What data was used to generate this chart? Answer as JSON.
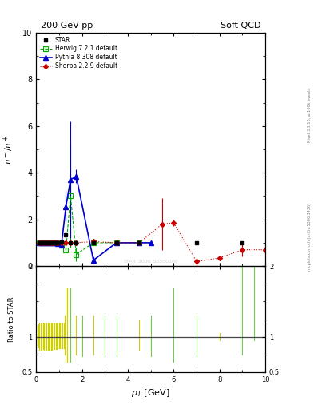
{
  "title_left": "200 GeV pp",
  "title_right": "Soft QCD",
  "ylabel_main": "pi$^-$ / pi$^+$",
  "ylabel_ratio": "Ratio to STAR",
  "xlabel": "$p_T$ [GeV]",
  "right_label_top": "Rivet 3.1.10, ≥ 100k events",
  "right_label_bottom": "mcplots.cern.ch [arXiv:1306.3436]",
  "watermark": "STAR_2006_S6500200",
  "ylim_main": [
    0,
    10
  ],
  "ylim_ratio": [
    0.5,
    2.0
  ],
  "xlim": [
    0,
    10
  ],
  "star_x": [
    0.15,
    0.25,
    0.35,
    0.45,
    0.55,
    0.65,
    0.75,
    0.85,
    0.95,
    1.1,
    1.3,
    1.5,
    1.75,
    2.5,
    3.5,
    4.5,
    7.0,
    9.0
  ],
  "star_y": [
    0.99,
    0.99,
    0.99,
    0.99,
    0.99,
    0.99,
    1.0,
    1.0,
    1.0,
    1.02,
    1.35,
    1.0,
    1.0,
    1.0,
    1.0,
    1.0,
    1.0,
    1.0
  ],
  "star_yerr": [
    0.02,
    0.02,
    0.02,
    0.02,
    0.02,
    0.02,
    0.02,
    0.02,
    0.02,
    0.03,
    0.08,
    0.04,
    0.04,
    0.05,
    0.05,
    0.05,
    0.05,
    0.05
  ],
  "herwig_x": [
    0.15,
    0.25,
    0.35,
    0.45,
    0.55,
    0.65,
    0.75,
    0.85,
    0.95,
    1.1,
    1.3,
    1.5,
    1.75,
    2.5,
    3.5,
    4.5
  ],
  "herwig_y": [
    1.0,
    1.0,
    1.0,
    1.0,
    0.99,
    1.0,
    1.0,
    0.99,
    0.99,
    0.95,
    0.7,
    3.0,
    0.5,
    1.0,
    1.0,
    1.0
  ],
  "herwig_yerr": [
    0.02,
    0.02,
    0.02,
    0.02,
    0.02,
    0.02,
    0.02,
    0.02,
    0.02,
    0.05,
    0.1,
    2.2,
    0.3,
    0.05,
    0.05,
    0.05
  ],
  "pythia_x": [
    0.15,
    0.25,
    0.35,
    0.45,
    0.55,
    0.65,
    0.75,
    0.85,
    0.95,
    1.1,
    1.3,
    1.5,
    1.75,
    2.5,
    3.5,
    4.5,
    5.0
  ],
  "pythia_y": [
    1.0,
    1.0,
    1.0,
    1.0,
    1.0,
    1.0,
    1.0,
    0.99,
    0.97,
    0.88,
    2.55,
    3.7,
    3.85,
    0.25,
    1.0,
    1.0,
    1.0
  ],
  "pythia_yerr": [
    0.02,
    0.02,
    0.02,
    0.02,
    0.02,
    0.02,
    0.02,
    0.02,
    0.04,
    0.1,
    0.7,
    2.5,
    0.3,
    0.15,
    0.05,
    0.05,
    0.05
  ],
  "sherpa_x": [
    0.15,
    0.25,
    0.35,
    0.45,
    0.55,
    0.65,
    0.75,
    0.85,
    0.95,
    1.1,
    1.3,
    1.5,
    1.75,
    2.5,
    3.5,
    4.5,
    5.5,
    6.0,
    7.0,
    8.0,
    9.0,
    10.0
  ],
  "sherpa_y": [
    1.0,
    1.0,
    1.0,
    1.0,
    1.0,
    1.0,
    1.0,
    1.0,
    1.0,
    1.0,
    1.0,
    1.0,
    1.0,
    1.05,
    1.0,
    1.0,
    1.8,
    1.85,
    0.2,
    0.35,
    0.7,
    0.7
  ],
  "sherpa_yerr": [
    0.03,
    0.03,
    0.03,
    0.03,
    0.03,
    0.03,
    0.03,
    0.03,
    0.03,
    0.03,
    0.04,
    0.04,
    0.04,
    0.05,
    0.05,
    0.05,
    1.1,
    0.15,
    0.15,
    0.1,
    0.3,
    0.3
  ],
  "star_color": "#000000",
  "herwig_color": "#00aa00",
  "pythia_color": "#0000cc",
  "sherpa_color": "#cc0000",
  "ratio_lines_yellow_x": [
    0.05,
    0.1,
    0.15,
    0.2,
    0.25,
    0.3,
    0.35,
    0.4,
    0.45,
    0.5,
    0.55,
    0.6,
    0.65,
    0.7,
    0.75,
    0.8,
    0.85,
    0.9,
    0.95,
    1.0,
    1.05,
    1.1,
    1.15,
    1.2,
    1.25,
    1.3,
    1.35,
    1.75,
    2.5,
    4.5,
    8.0
  ],
  "ratio_lines_yellow_lo": [
    0.88,
    0.85,
    0.82,
    0.82,
    0.82,
    0.83,
    0.82,
    0.82,
    0.82,
    0.82,
    0.82,
    0.82,
    0.82,
    0.82,
    0.83,
    0.83,
    0.83,
    0.83,
    0.84,
    0.84,
    0.84,
    0.84,
    0.84,
    0.84,
    0.75,
    0.65,
    0.65,
    0.75,
    0.75,
    0.8,
    0.95
  ],
  "ratio_lines_yellow_hi": [
    1.15,
    1.18,
    1.2,
    1.2,
    1.2,
    1.2,
    1.2,
    1.2,
    1.2,
    1.2,
    1.2,
    1.2,
    1.2,
    1.2,
    1.2,
    1.2,
    1.2,
    1.2,
    1.2,
    1.2,
    1.2,
    1.2,
    1.2,
    1.2,
    1.3,
    1.7,
    1.7,
    1.3,
    1.3,
    1.25,
    1.05
  ],
  "ratio_lines_green_x": [
    1.5,
    2.0,
    3.0,
    3.5,
    5.0,
    6.0,
    7.0,
    9.0,
    9.5
  ],
  "ratio_lines_green_lo": [
    0.65,
    0.72,
    0.72,
    0.72,
    0.72,
    0.65,
    0.72,
    0.75,
    0.95
  ],
  "ratio_lines_green_hi": [
    1.7,
    1.3,
    1.3,
    1.3,
    1.3,
    1.7,
    1.3,
    2.1,
    2.1
  ]
}
